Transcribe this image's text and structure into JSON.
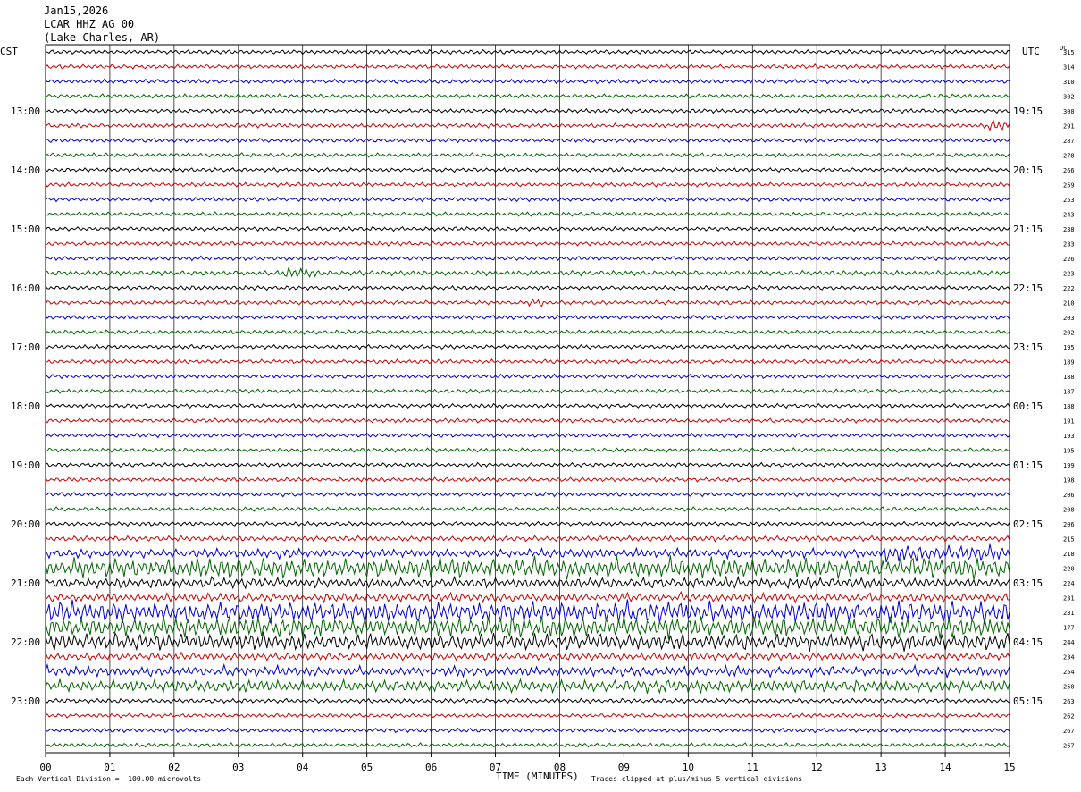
{
  "header": {
    "date": "Jan15,2026",
    "station": "LCAR HHZ AG 00",
    "location": "(Lake Charles, AR)"
  },
  "left_axis_label": "CST",
  "right_axis_label": "UTC",
  "dc_label": "DC",
  "footer": {
    "scale": "Each Vertical Division =  100.00 microvolts",
    "xlabel": "TIME (MINUTES)",
    "clip_note": "Traces clipped at plus/minus 5 vertical divisions"
  },
  "colors": {
    "cycle": [
      "#000000",
      "#cc0000",
      "#0000cc",
      "#006600"
    ]
  },
  "chart_data": {
    "type": "line",
    "title": "",
    "xlabel": "TIME (MINUTES)",
    "ylabel": "",
    "x_ticks": [
      "00",
      "01",
      "02",
      "03",
      "04",
      "05",
      "06",
      "07",
      "08",
      "09",
      "10",
      "11",
      "12",
      "13",
      "14",
      "15"
    ],
    "xlim": [
      0,
      15
    ],
    "grid": true,
    "left_hour_labels": [
      {
        "row": 4,
        "label": "13:00"
      },
      {
        "row": 8,
        "label": "14:00"
      },
      {
        "row": 12,
        "label": "15:00"
      },
      {
        "row": 16,
        "label": "16:00"
      },
      {
        "row": 20,
        "label": "17:00"
      },
      {
        "row": 24,
        "label": "18:00"
      },
      {
        "row": 28,
        "label": "19:00"
      },
      {
        "row": 32,
        "label": "20:00"
      },
      {
        "row": 36,
        "label": "21:00"
      },
      {
        "row": 40,
        "label": "22:00"
      },
      {
        "row": 44,
        "label": "23:00"
      }
    ],
    "right_hour_labels": [
      {
        "row": 4,
        "label": "19:15"
      },
      {
        "row": 8,
        "label": "20:15"
      },
      {
        "row": 12,
        "label": "21:15"
      },
      {
        "row": 16,
        "label": "22:15"
      },
      {
        "row": 20,
        "label": "23:15"
      },
      {
        "row": 24,
        "label": "00:15"
      },
      {
        "row": 28,
        "label": "01:15"
      },
      {
        "row": 32,
        "label": "02:15"
      },
      {
        "row": 36,
        "label": "03:15"
      },
      {
        "row": 40,
        "label": "04:15"
      },
      {
        "row": 44,
        "label": "05:15"
      }
    ],
    "dc_offsets": [
      "315",
      "314",
      "310",
      "302",
      "300",
      "291",
      "287",
      "278",
      "266",
      "259",
      "253",
      "243",
      "238",
      "233",
      "226",
      "223",
      "222",
      "210",
      "203",
      "202",
      "195",
      "189",
      "188",
      "187",
      "188",
      "191",
      "193",
      "195",
      "199",
      "198",
      "206",
      "208",
      "206",
      "215",
      "218",
      "220",
      "224",
      "231",
      "231",
      "177",
      "244",
      "234",
      "254",
      "250",
      "263",
      "262",
      "267",
      "267"
    ],
    "amplitude": [
      1,
      1,
      1,
      1,
      1,
      1,
      1,
      1,
      1,
      1,
      1,
      1,
      1,
      1,
      1,
      1.2,
      1,
      1,
      1,
      1,
      1,
      1,
      1,
      1,
      1,
      1,
      1,
      1,
      1,
      1,
      1,
      1,
      1,
      1.3,
      2.2,
      5,
      2.5,
      2.2,
      5,
      5,
      4,
      1.8,
      2.5,
      3,
      1.1,
      1,
      1,
      1
    ],
    "events": [
      {
        "row": 15,
        "x_min": 3.7,
        "x_max": 4.2,
        "amp": 2.5
      },
      {
        "row": 5,
        "x_min": 14.6,
        "x_max": 15,
        "amp": 2.5
      },
      {
        "row": 17,
        "x_min": 7.5,
        "x_max": 7.8,
        "amp": 2
      },
      {
        "row": 38,
        "x_min": 1.9,
        "x_max": 3.5,
        "amp": 4.5
      },
      {
        "row": 34,
        "x_min": 13,
        "x_max": 15,
        "amp": 4
      }
    ]
  }
}
